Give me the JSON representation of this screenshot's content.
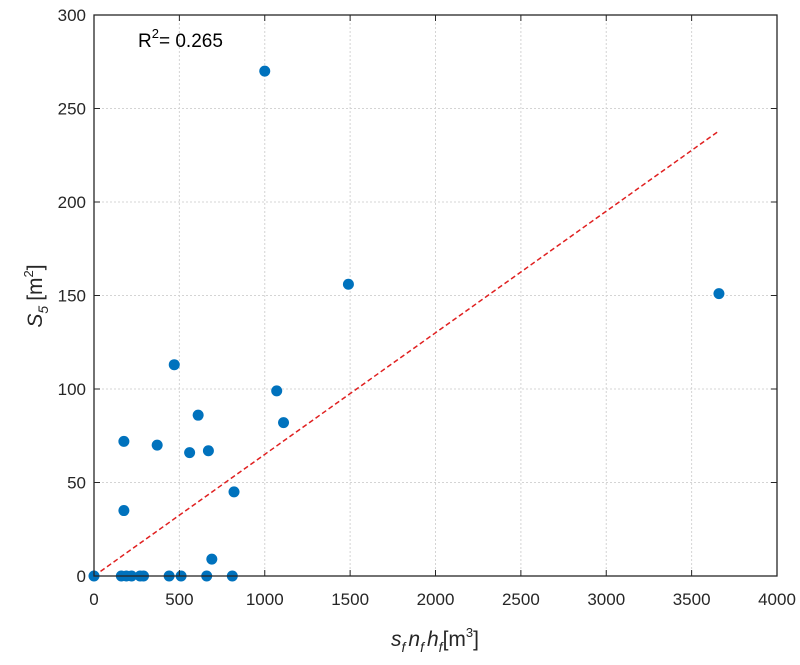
{
  "chart_data": {
    "type": "scatter",
    "xlabel": {
      "s1": "s",
      "s1_sub": "f",
      "s2": "n",
      "s2_sub": "f",
      "s3": "h",
      "s3_sub": "f",
      "unit": "[m",
      "unit_sup": "3",
      "unit_close": "]"
    },
    "ylabel": {
      "sym": "S",
      "sym_sub": "5",
      "unit": "[m",
      "unit_sup": "2",
      "unit_close": "]"
    },
    "annotation": {
      "prefix": "R",
      "sup": "2",
      "value": "= 0.265"
    },
    "xlim": [
      0,
      4000
    ],
    "ylim": [
      0,
      300
    ],
    "xticks": [
      0,
      500,
      1000,
      1500,
      2000,
      2500,
      3000,
      3500,
      4000
    ],
    "yticks": [
      0,
      50,
      100,
      150,
      200,
      250,
      300
    ],
    "grid": true,
    "colors": {
      "points": "#0072BD",
      "fit": "#E02020"
    },
    "series": [
      {
        "points": [
          [
            0,
            0
          ],
          [
            160,
            0
          ],
          [
            190,
            0
          ],
          [
            220,
            0
          ],
          [
            270,
            0
          ],
          [
            290,
            0
          ],
          [
            440,
            0
          ],
          [
            510,
            0
          ],
          [
            660,
            0
          ],
          [
            810,
            0
          ],
          [
            175,
            72
          ],
          [
            175,
            35
          ],
          [
            370,
            70
          ],
          [
            470,
            113
          ],
          [
            560,
            66
          ],
          [
            610,
            86
          ],
          [
            670,
            67
          ],
          [
            690,
            9
          ],
          [
            820,
            45
          ],
          [
            1000,
            270
          ],
          [
            1070,
            99
          ],
          [
            1110,
            82
          ],
          [
            1490,
            156
          ],
          [
            3660,
            151
          ]
        ]
      }
    ],
    "fit_line": {
      "x": [
        0,
        3660
      ],
      "y": [
        0,
        238
      ]
    }
  }
}
